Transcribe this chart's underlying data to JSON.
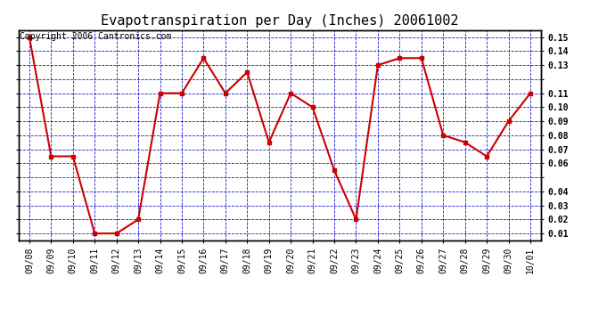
{
  "title": "Evapotranspiration per Day (Inches) 20061002",
  "copyright_text": "Copyright 2006 Cantronics.com",
  "x_labels": [
    "09/08",
    "09/09",
    "09/10",
    "09/11",
    "09/12",
    "09/13",
    "09/14",
    "09/15",
    "09/16",
    "09/17",
    "09/18",
    "09/19",
    "09/20",
    "09/21",
    "09/22",
    "09/23",
    "09/24",
    "09/25",
    "09/26",
    "09/27",
    "09/28",
    "09/29",
    "09/30",
    "10/01"
  ],
  "y_values": [
    0.15,
    0.065,
    0.065,
    0.01,
    0.01,
    0.02,
    0.11,
    0.11,
    0.135,
    0.11,
    0.125,
    0.075,
    0.11,
    0.1,
    0.055,
    0.02,
    0.13,
    0.135,
    0.135,
    0.08,
    0.075,
    0.065,
    0.09,
    0.11
  ],
  "yticks": [
    0.01,
    0.02,
    0.03,
    0.04,
    0.05,
    0.06,
    0.07,
    0.08,
    0.09,
    0.1,
    0.11,
    0.12,
    0.13,
    0.14,
    0.15
  ],
  "ytick_labels": [
    "0.01",
    "0.02",
    "0.03",
    "0.04",
    "",
    "0.06",
    "0.07",
    "0.08",
    "0.09",
    "0.10",
    "0.11",
    "",
    "0.13",
    "0.14",
    "0.15"
  ],
  "line_color": "#cc0000",
  "marker_color": "#cc0000",
  "bg_color": "#ffffff",
  "plot_bg_color": "#ffffff",
  "grid_color": "#0000cc",
  "title_fontsize": 11,
  "tick_fontsize": 7,
  "copyright_fontsize": 7
}
